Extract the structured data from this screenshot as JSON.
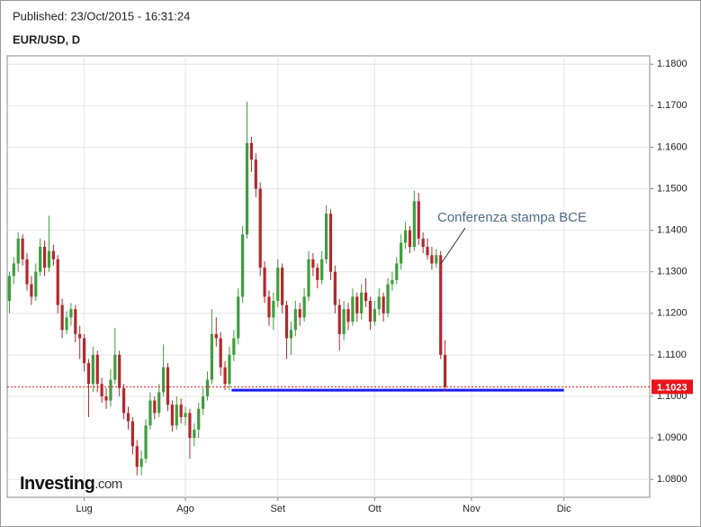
{
  "chart_data": {
    "type": "candlestick",
    "published": "Published: 23/Oct/2015 - 16:31:24",
    "title": "EUR/USD, D",
    "logo": [
      "Investing",
      ".com"
    ],
    "annotation": "Conferenza stampa BCE",
    "up_color": "#3d9e3d",
    "down_color": "#b3282d",
    "grid": true,
    "ylim": [
      1.0757,
      1.182
    ],
    "yticks": [
      {
        "value": 1.08,
        "label": "1.0800"
      },
      {
        "value": 1.09,
        "label": "1.0900"
      },
      {
        "value": 1.1,
        "label": "1.1000"
      },
      {
        "value": 1.11,
        "label": "1.1100"
      },
      {
        "value": 1.12,
        "label": "1.1200"
      },
      {
        "value": 1.13,
        "label": "1.1300"
      },
      {
        "value": 1.14,
        "label": "1.1400"
      },
      {
        "value": 1.15,
        "label": "1.1500"
      },
      {
        "value": 1.16,
        "label": "1.1600"
      },
      {
        "value": 1.17,
        "label": "1.1700"
      },
      {
        "value": 1.18,
        "label": "1.1800"
      }
    ],
    "last_price": 1.1023,
    "last_price_color": "#e8141c",
    "support": 1.1015,
    "support_color": "#1a1aff",
    "categories": [
      null,
      null,
      null,
      null,
      null,
      null,
      null,
      null,
      null,
      null,
      null,
      null,
      null,
      null,
      null,
      null,
      null,
      "Lug",
      null,
      null,
      null,
      null,
      null,
      null,
      null,
      null,
      null,
      null,
      null,
      null,
      null,
      null,
      null,
      null,
      null,
      null,
      null,
      null,
      null,
      null,
      "Ago",
      null,
      null,
      null,
      null,
      null,
      null,
      null,
      null,
      null,
      null,
      null,
      null,
      null,
      null,
      null,
      null,
      null,
      null,
      null,
      null,
      "Set",
      null,
      null,
      null,
      null,
      null,
      null,
      null,
      null,
      null,
      null,
      null,
      null,
      null,
      null,
      null,
      null,
      null,
      null,
      null,
      null,
      null,
      "Ott",
      null,
      null,
      null,
      null,
      null,
      null,
      null,
      null,
      null,
      null,
      null,
      null,
      null,
      null,
      null,
      null,
      null,
      null,
      null,
      null,
      null,
      "Nov",
      null,
      null,
      null,
      null,
      null,
      null,
      null,
      null,
      null,
      null,
      null,
      null,
      null,
      null,
      null,
      null,
      null,
      null,
      null,
      null,
      "Dic",
      null,
      null,
      null,
      null,
      null,
      null,
      null,
      null,
      null,
      null,
      null,
      null,
      null,
      null,
      null,
      null,
      null,
      null,
      null
    ],
    "series": [
      {
        "name": "EUR/USD",
        "values": [
          [
            1.123,
            1.13,
            1.12,
            1.129
          ],
          [
            1.129,
            1.1335,
            1.127,
            1.132
          ],
          [
            1.132,
            1.1395,
            1.13,
            1.138
          ],
          [
            1.138,
            1.139,
            1.1315,
            1.133
          ],
          [
            1.133,
            1.1345,
            1.1255,
            1.127
          ],
          [
            1.127,
            1.129,
            1.122,
            1.124
          ],
          [
            1.124,
            1.132,
            1.123,
            1.13
          ],
          [
            1.13,
            1.138,
            1.129,
            1.136
          ],
          [
            1.136,
            1.1375,
            1.129,
            1.131
          ],
          [
            1.131,
            1.1435,
            1.13,
            1.135
          ],
          [
            1.135,
            1.1365,
            1.1315,
            1.133
          ],
          [
            1.133,
            1.134,
            1.12,
            1.122
          ],
          [
            1.122,
            1.1235,
            1.114,
            1.116
          ],
          [
            1.116,
            1.1205,
            1.115,
            1.119
          ],
          [
            1.119,
            1.1225,
            1.117,
            1.121
          ],
          [
            1.121,
            1.122,
            1.113,
            1.115
          ],
          [
            1.115,
            1.117,
            1.109,
            1.114
          ],
          [
            1.114,
            1.115,
            1.106,
            1.108
          ],
          [
            1.108,
            1.109,
            1.095,
            1.103
          ],
          [
            1.103,
            1.112,
            1.101,
            1.11
          ],
          [
            1.11,
            1.111,
            1.101,
            1.103
          ],
          [
            1.103,
            1.1045,
            1.0985,
            1.1
          ],
          [
            1.1,
            1.102,
            1.097,
            1.099
          ],
          [
            1.099,
            1.1065,
            1.0975,
            1.104
          ],
          [
            1.104,
            1.1165,
            1.103,
            1.11
          ],
          [
            1.11,
            1.111,
            1.1,
            1.102
          ],
          [
            1.102,
            1.103,
            1.0945,
            1.096
          ],
          [
            1.096,
            1.0975,
            1.092,
            1.094
          ],
          [
            1.094,
            1.095,
            1.086,
            1.088
          ],
          [
            1.088,
            1.0895,
            1.081,
            1.083
          ],
          [
            1.083,
            1.087,
            1.081,
            1.085
          ],
          [
            1.085,
            1.0945,
            1.084,
            1.093
          ],
          [
            1.093,
            1.101,
            1.092,
            1.099
          ],
          [
            1.099,
            1.1,
            1.0945,
            1.096
          ],
          [
            1.096,
            1.103,
            1.095,
            1.101
          ],
          [
            1.101,
            1.1125,
            1.1,
            1.107
          ],
          [
            1.107,
            1.108,
            1.0965,
            1.098
          ],
          [
            1.098,
            1.099,
            1.0915,
            1.093
          ],
          [
            1.093,
            1.1,
            1.092,
            1.098
          ],
          [
            1.098,
            1.0995,
            1.0935,
            1.095
          ],
          [
            1.095,
            1.0975,
            1.093,
            1.096
          ],
          [
            1.096,
            1.097,
            1.085,
            1.09
          ],
          [
            1.09,
            1.0935,
            1.088,
            1.092
          ],
          [
            1.092,
            1.0985,
            1.09,
            1.097
          ],
          [
            1.097,
            1.102,
            1.0955,
            1.1
          ],
          [
            1.1,
            1.106,
            1.099,
            1.104
          ],
          [
            1.104,
            1.121,
            1.103,
            1.115
          ],
          [
            1.115,
            1.119,
            1.112,
            1.114
          ],
          [
            1.114,
            1.1155,
            1.105,
            1.107
          ],
          [
            1.107,
            1.1085,
            1.1015,
            1.103
          ],
          [
            1.103,
            1.112,
            1.1015,
            1.11
          ],
          [
            1.11,
            1.116,
            1.1085,
            1.114
          ],
          [
            1.114,
            1.126,
            1.1125,
            1.124
          ],
          [
            1.124,
            1.141,
            1.1225,
            1.139
          ],
          [
            1.139,
            1.171,
            1.138,
            1.161
          ],
          [
            1.161,
            1.1625,
            1.154,
            1.157
          ],
          [
            1.157,
            1.1585,
            1.148,
            1.15
          ],
          [
            1.15,
            1.1515,
            1.129,
            1.131
          ],
          [
            1.131,
            1.1325,
            1.1225,
            1.124
          ],
          [
            1.124,
            1.1255,
            1.117,
            1.119
          ],
          [
            1.119,
            1.125,
            1.116,
            1.123
          ],
          [
            1.123,
            1.133,
            1.1215,
            1.131
          ],
          [
            1.131,
            1.132,
            1.12,
            1.122
          ],
          [
            1.122,
            1.123,
            1.109,
            1.114
          ],
          [
            1.114,
            1.118,
            1.11,
            1.116
          ],
          [
            1.116,
            1.123,
            1.1145,
            1.121
          ],
          [
            1.121,
            1.1225,
            1.117,
            1.119
          ],
          [
            1.119,
            1.126,
            1.118,
            1.124
          ],
          [
            1.124,
            1.135,
            1.123,
            1.133
          ],
          [
            1.133,
            1.1345,
            1.129,
            1.131
          ],
          [
            1.131,
            1.132,
            1.126,
            1.128
          ],
          [
            1.128,
            1.135,
            1.127,
            1.133
          ],
          [
            1.133,
            1.146,
            1.132,
            1.144
          ],
          [
            1.144,
            1.145,
            1.128,
            1.13
          ],
          [
            1.13,
            1.1315,
            1.12,
            1.122
          ],
          [
            1.122,
            1.1235,
            1.111,
            1.115
          ],
          [
            1.115,
            1.123,
            1.1135,
            1.121
          ],
          [
            1.121,
            1.1225,
            1.116,
            1.118
          ],
          [
            1.118,
            1.126,
            1.117,
            1.124
          ],
          [
            1.124,
            1.125,
            1.118,
            1.12
          ],
          [
            1.12,
            1.127,
            1.1185,
            1.125
          ],
          [
            1.125,
            1.1285,
            1.1215,
            1.123
          ],
          [
            1.123,
            1.124,
            1.116,
            1.118
          ],
          [
            1.118,
            1.123,
            1.117,
            1.121
          ],
          [
            1.121,
            1.126,
            1.1195,
            1.124
          ],
          [
            1.124,
            1.125,
            1.118,
            1.12
          ],
          [
            1.12,
            1.1285,
            1.119,
            1.127
          ],
          [
            1.127,
            1.13,
            1.1255,
            1.128
          ],
          [
            1.128,
            1.1335,
            1.127,
            1.132
          ],
          [
            1.132,
            1.139,
            1.1305,
            1.137
          ],
          [
            1.137,
            1.142,
            1.1355,
            1.14
          ],
          [
            1.14,
            1.141,
            1.1345,
            1.136
          ],
          [
            1.136,
            1.1495,
            1.135,
            1.147
          ],
          [
            1.147,
            1.149,
            1.1365,
            1.138
          ],
          [
            1.138,
            1.1395,
            1.1345,
            1.136
          ],
          [
            1.136,
            1.138,
            1.133,
            1.134
          ],
          [
            1.134,
            1.136,
            1.1305,
            1.132
          ],
          [
            1.132,
            1.1355,
            1.131,
            1.134
          ],
          [
            1.134,
            1.135,
            1.109,
            1.11
          ],
          [
            1.11,
            1.1135,
            1.1012,
            1.1023
          ],
          null,
          null,
          null,
          null,
          null,
          null,
          null,
          null,
          null,
          null,
          null,
          null,
          null,
          null,
          null,
          null,
          null,
          null,
          null,
          null,
          null,
          null,
          null,
          null,
          null,
          null,
          null,
          null,
          null,
          null,
          null,
          null,
          null,
          null,
          null,
          null,
          null,
          null,
          null,
          null,
          null,
          null,
          null,
          null,
          null,
          null
        ]
      }
    ]
  }
}
